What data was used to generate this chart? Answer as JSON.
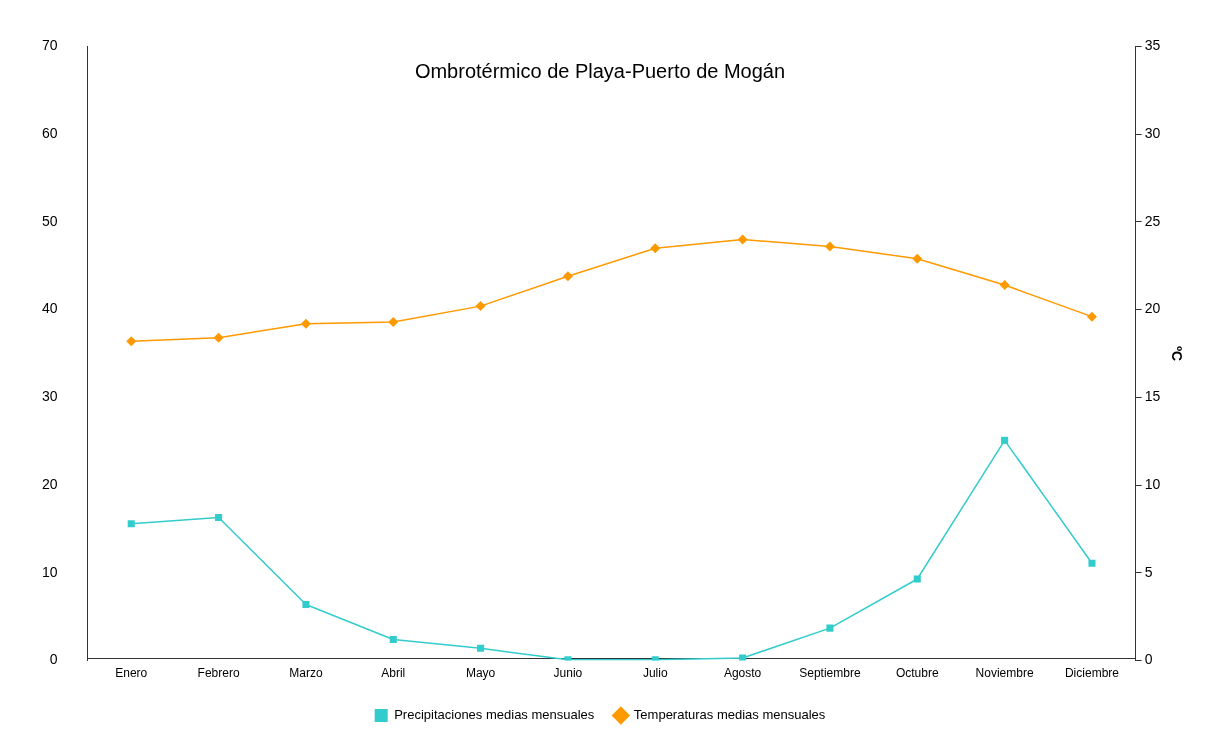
{
  "chart_data": {
    "type": "line",
    "title": "Ombrotérmico de Playa-Puerto de Mogán",
    "y2label": "ºC",
    "categories": [
      "Enero",
      "Febrero",
      "Marzo",
      "Abril",
      "Mayo",
      "Junio",
      "Julio",
      "Agosto",
      "Septiembre",
      "Octubre",
      "Noviembre",
      "Diciembre"
    ],
    "series": [
      {
        "name": "Precipitaciones medias mensuales",
        "color": "#33cccc",
        "marker": "square",
        "values": [
          15.6,
          16.3,
          6.4,
          2.4,
          1.4,
          0.1,
          0.1,
          0.3,
          3.7,
          9.3,
          25.1,
          11.1
        ]
      },
      {
        "name": "Temperaturas medias mensuales",
        "color": "#ff9900",
        "marker": "diamond",
        "axis": "y2",
        "values": [
          18.2,
          18.4,
          19.2,
          19.3,
          20.2,
          21.9,
          23.5,
          24.0,
          23.6,
          22.9,
          21.4,
          19.6
        ]
      }
    ],
    "ylim": [
      0,
      70
    ],
    "yticks": [
      0,
      10,
      20,
      30,
      40,
      50,
      60,
      70
    ],
    "y2lim": [
      0,
      35
    ],
    "y2ticks": [
      0,
      5,
      10,
      15,
      20,
      25,
      30,
      35
    ],
    "grid": false,
    "legend": "bottom",
    "line_style": "solid"
  }
}
